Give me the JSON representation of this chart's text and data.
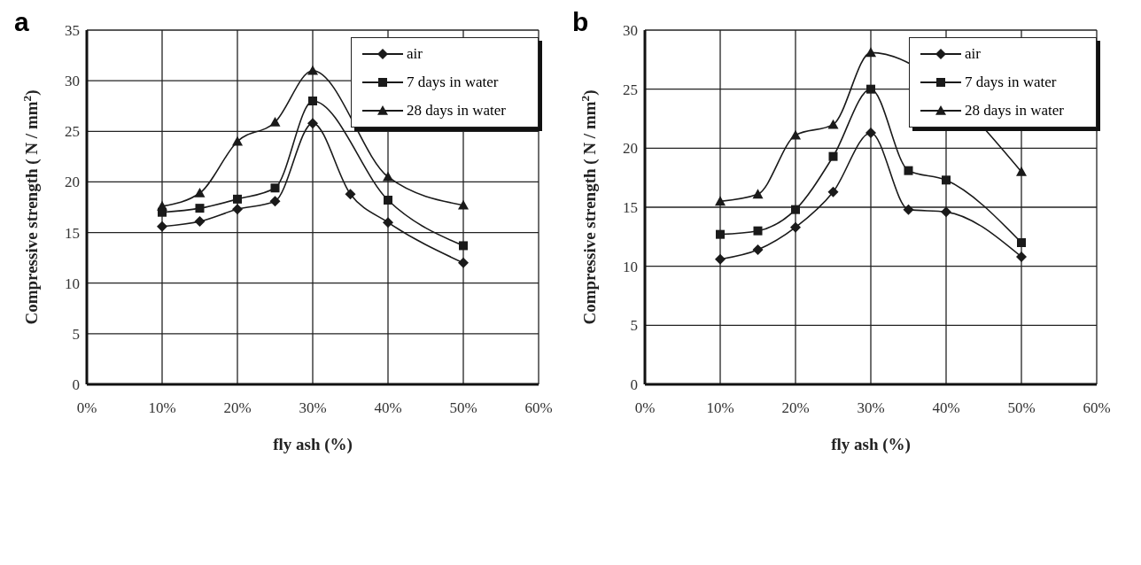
{
  "chart_data": [
    {
      "type": "line",
      "title": "a",
      "xlabel": "fly ash (%)",
      "ylabel": "Compressive strength ( N / mm$^{2}$)",
      "x": [
        10,
        15,
        20,
        25,
        30,
        35,
        40,
        50
      ],
      "series": [
        {
          "name": "air",
          "color": "#1a1a1a",
          "marker": "diamond",
          "values": [
            15.6,
            16.1,
            17.3,
            18.1,
            25.8,
            18.8,
            16.0,
            12.0
          ]
        },
        {
          "name": "7 days in water",
          "color": "#1a1a1a",
          "marker": "square",
          "values": [
            17.0,
            17.4,
            18.3,
            19.4,
            28.0,
            null,
            18.2,
            13.7
          ]
        },
        {
          "name": "28 days in water",
          "color": "#1a1a1a",
          "marker": "triangle",
          "values": [
            17.6,
            18.9,
            24.0,
            25.9,
            31.0,
            null,
            20.5,
            17.7
          ]
        }
      ],
      "xlim": [
        0,
        60
      ],
      "xticks": [
        {
          "value": 0,
          "label": "0%"
        },
        {
          "value": 10,
          "label": "10%"
        },
        {
          "value": 20,
          "label": "20%"
        },
        {
          "value": 30,
          "label": "30%"
        },
        {
          "value": 40,
          "label": "40%"
        },
        {
          "value": 50,
          "label": "50%"
        },
        {
          "value": 60,
          "label": "60%"
        }
      ],
      "ylim": [
        0,
        35
      ],
      "yticks": [
        0,
        5,
        10,
        15,
        20,
        25,
        30,
        35
      ],
      "grid": true,
      "legend": "top right",
      "line_style": "solid"
    },
    {
      "type": "line",
      "title": "b",
      "xlabel": "fly ash (%)",
      "ylabel": "Compressive strength ( N / mm$^{2}$)",
      "x": [
        10,
        15,
        20,
        25,
        30,
        35,
        40,
        50
      ],
      "series": [
        {
          "name": "air",
          "color": "#1a1a1a",
          "marker": "diamond",
          "values": [
            10.6,
            11.4,
            13.3,
            16.3,
            21.3,
            14.8,
            14.6,
            10.8
          ]
        },
        {
          "name": "7 days in water",
          "color": "#1a1a1a",
          "marker": "square",
          "values": [
            12.7,
            13.0,
            14.8,
            19.3,
            25.0,
            18.1,
            17.3,
            12.0
          ]
        },
        {
          "name": "28 days in water",
          "color": "#1a1a1a",
          "marker": "triangle",
          "values": [
            15.5,
            16.1,
            21.1,
            22.0,
            28.1,
            null,
            null,
            18.0
          ]
        }
      ],
      "xlim": [
        0,
        60
      ],
      "xticks": [
        {
          "value": 0,
          "label": "0%"
        },
        {
          "value": 10,
          "label": "10%"
        },
        {
          "value": 20,
          "label": "20%"
        },
        {
          "value": 30,
          "label": "30%"
        },
        {
          "value": 40,
          "label": "40%"
        },
        {
          "value": 50,
          "label": "50%"
        },
        {
          "value": 60,
          "label": "60%"
        }
      ],
      "ylim": [
        0,
        30
      ],
      "yticks": [
        0,
        5,
        10,
        15,
        20,
        25,
        30
      ],
      "grid": true,
      "legend": "top right",
      "line_style": "solid"
    }
  ]
}
